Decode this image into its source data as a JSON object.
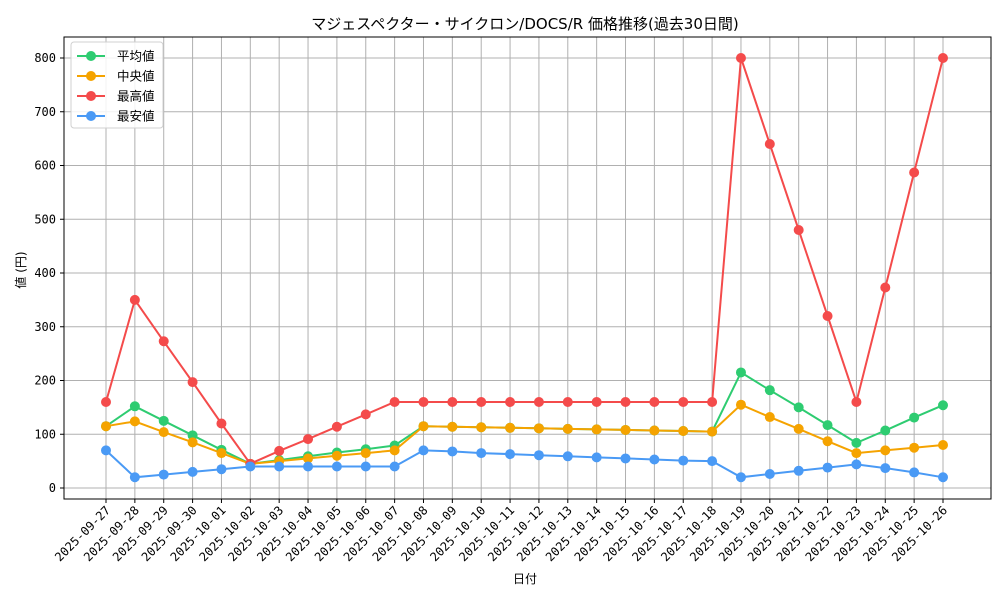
{
  "chart_data": {
    "type": "line",
    "title": "マジェスペクター・サイクロン/DOCS/R 価格推移(過去30日間)",
    "xlabel": "日付",
    "ylabel": "値 (円)",
    "ylim": [
      -20,
      840
    ],
    "yticks": [
      0,
      100,
      200,
      300,
      400,
      500,
      600,
      700,
      800
    ],
    "grid": true,
    "legend_position": "upper left",
    "categories": [
      "2025-09-27",
      "2025-09-28",
      "2025-09-29",
      "2025-09-30",
      "2025-10-01",
      "2025-10-02",
      "2025-10-03",
      "2025-10-04",
      "2025-10-05",
      "2025-10-06",
      "2025-10-07",
      "2025-10-08",
      "2025-10-09",
      "2025-10-10",
      "2025-10-11",
      "2025-10-12",
      "2025-10-13",
      "2025-10-14",
      "2025-10-15",
      "2025-10-16",
      "2025-10-17",
      "2025-10-18",
      "2025-10-19",
      "2025-10-20",
      "2025-10-21",
      "2025-10-22",
      "2025-10-23",
      "2025-10-24",
      "2025-10-25",
      "2025-10-26"
    ],
    "series": [
      {
        "name": "平均値",
        "color": "#2ecc71",
        "values": [
          115,
          152,
          125,
          98,
          71,
          45,
          52,
          59,
          66,
          72,
          79,
          115,
          114,
          113,
          112,
          111,
          110,
          109,
          108,
          107,
          106,
          105,
          215,
          182,
          150,
          117,
          84,
          107,
          131,
          154
        ]
      },
      {
        "name": "中央値",
        "color": "#f5a300",
        "values": [
          115,
          124,
          104,
          85,
          65,
          45,
          50,
          55,
          60,
          65,
          70,
          115,
          114,
          113,
          112,
          111,
          110,
          109,
          108,
          107,
          106,
          105,
          155,
          132,
          110,
          87,
          65,
          70,
          75,
          80
        ]
      },
      {
        "name": "最高値",
        "color": "#f44b4b",
        "values": [
          160,
          350,
          273,
          197,
          120,
          45,
          69,
          91,
          114,
          137,
          160,
          160,
          160,
          160,
          160,
          160,
          160,
          160,
          160,
          160,
          160,
          160,
          800,
          640,
          480,
          320,
          160,
          373,
          587,
          800
        ]
      },
      {
        "name": "最安値",
        "color": "#4a9af5",
        "values": [
          70,
          20,
          25,
          30,
          35,
          40,
          40,
          40,
          40,
          40,
          40,
          70,
          68,
          65,
          63,
          61,
          59,
          57,
          55,
          53,
          51,
          50,
          20,
          26,
          32,
          38,
          44,
          37,
          29,
          20
        ]
      }
    ]
  }
}
